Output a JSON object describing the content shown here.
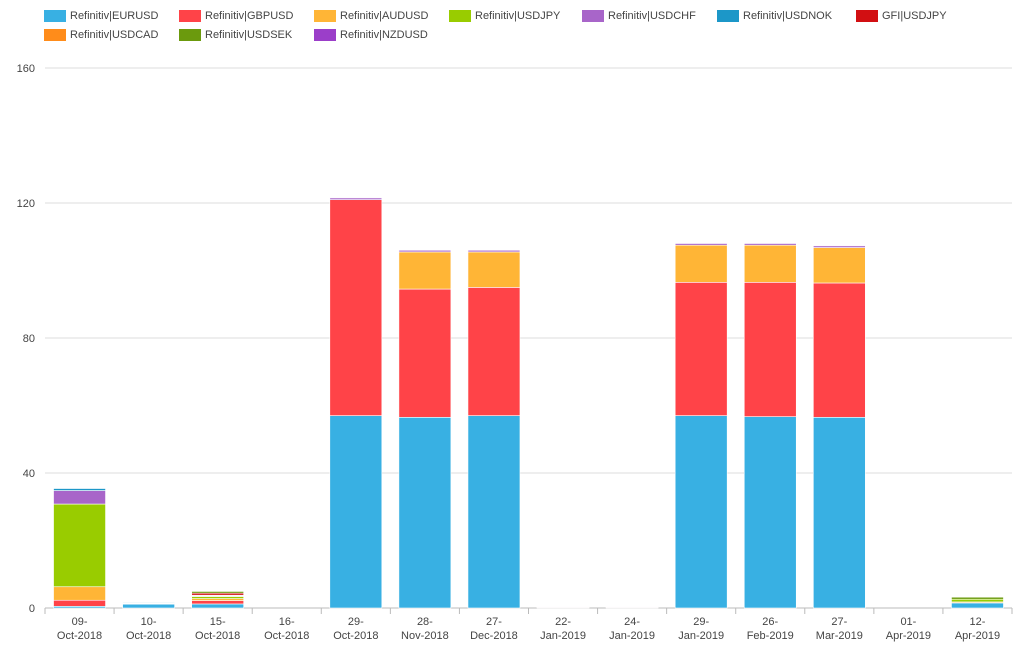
{
  "chart_data": {
    "type": "bar",
    "stacked": true,
    "title": "",
    "xlabel": "",
    "ylabel": "",
    "ylim": [
      0,
      160
    ],
    "yticks": [
      0,
      40,
      80,
      120,
      160
    ],
    "grid": "horizontal",
    "legend_placement": "top-left",
    "categories": [
      [
        "09-",
        "Oct-2018"
      ],
      [
        "10-",
        "Oct-2018"
      ],
      [
        "15-",
        "Oct-2018"
      ],
      [
        "16-",
        "Oct-2018"
      ],
      [
        "29-",
        "Oct-2018"
      ],
      [
        "28-",
        "Nov-2018"
      ],
      [
        "27-",
        "Dec-2018"
      ],
      [
        "22-",
        "Jan-2019"
      ],
      [
        "24-",
        "Jan-2019"
      ],
      [
        "29-",
        "Jan-2019"
      ],
      [
        "26-",
        "Feb-2019"
      ],
      [
        "27-",
        "Mar-2019"
      ],
      [
        "01-",
        "Apr-2019"
      ],
      [
        "12-",
        "Apr-2019"
      ]
    ],
    "series": [
      {
        "name": "Refinitiv|EURUSD",
        "color": "#38b0e3",
        "values": [
          0.5,
          1.2,
          1.2,
          0,
          57,
          56.5,
          57,
          0.2,
          0.2,
          57,
          56.7,
          56.5,
          0,
          1.5
        ]
      },
      {
        "name": "Refinitiv|GBPUSD",
        "color": "#ff4348",
        "values": [
          1.8,
          0.1,
          1.0,
          0,
          64,
          38,
          38,
          0.1,
          0.1,
          39.5,
          39.8,
          39.8,
          0,
          0
        ]
      },
      {
        "name": "Refinitiv|AUDUSD",
        "color": "#ffb536",
        "values": [
          4.0,
          0,
          0.6,
          0,
          0,
          11,
          10.5,
          0.1,
          0.1,
          11,
          11,
          10.5,
          0,
          0.3
        ]
      },
      {
        "name": "Refinitiv|USDJPY",
        "color": "#99cc00",
        "values": [
          24.5,
          0,
          0.6,
          0,
          0,
          0,
          0,
          0,
          0,
          0,
          0,
          0,
          0,
          0.8
        ]
      },
      {
        "name": "Refinitiv|USDCHF",
        "color": "#a865c9",
        "values": [
          4.0,
          0.1,
          0.2,
          0,
          0.5,
          0.5,
          0.5,
          0.1,
          0.1,
          0.5,
          0.5,
          0.5,
          0,
          0
        ]
      },
      {
        "name": "Refinitiv|USDNOK",
        "color": "#1c97c8",
        "values": [
          0.6,
          0.2,
          0.2,
          0,
          0,
          0,
          0,
          0,
          0,
          0,
          0,
          0,
          0,
          0
        ]
      },
      {
        "name": "GFI|USDJPY",
        "color": "#d20f12",
        "values": [
          0,
          0,
          0.6,
          0,
          0,
          0,
          0,
          0,
          0,
          0,
          0,
          0,
          0,
          0
        ]
      },
      {
        "name": "Refinitiv|USDCAD",
        "color": "#ff8c1a",
        "values": [
          0,
          0,
          0,
          0,
          0,
          0,
          0,
          0,
          0,
          0,
          0,
          0,
          0,
          0
        ]
      },
      {
        "name": "Refinitiv|USDSEK",
        "color": "#6b9a0d",
        "values": [
          0,
          0,
          0.5,
          0,
          0,
          0,
          0,
          0,
          0,
          0,
          0,
          0,
          0,
          0.6
        ]
      },
      {
        "name": "Refinitiv|NZDUSD",
        "color": "#9b3ec9",
        "values": [
          0,
          0,
          0,
          0,
          0,
          0,
          0,
          0,
          0,
          0,
          0,
          0,
          0,
          0
        ]
      }
    ]
  }
}
